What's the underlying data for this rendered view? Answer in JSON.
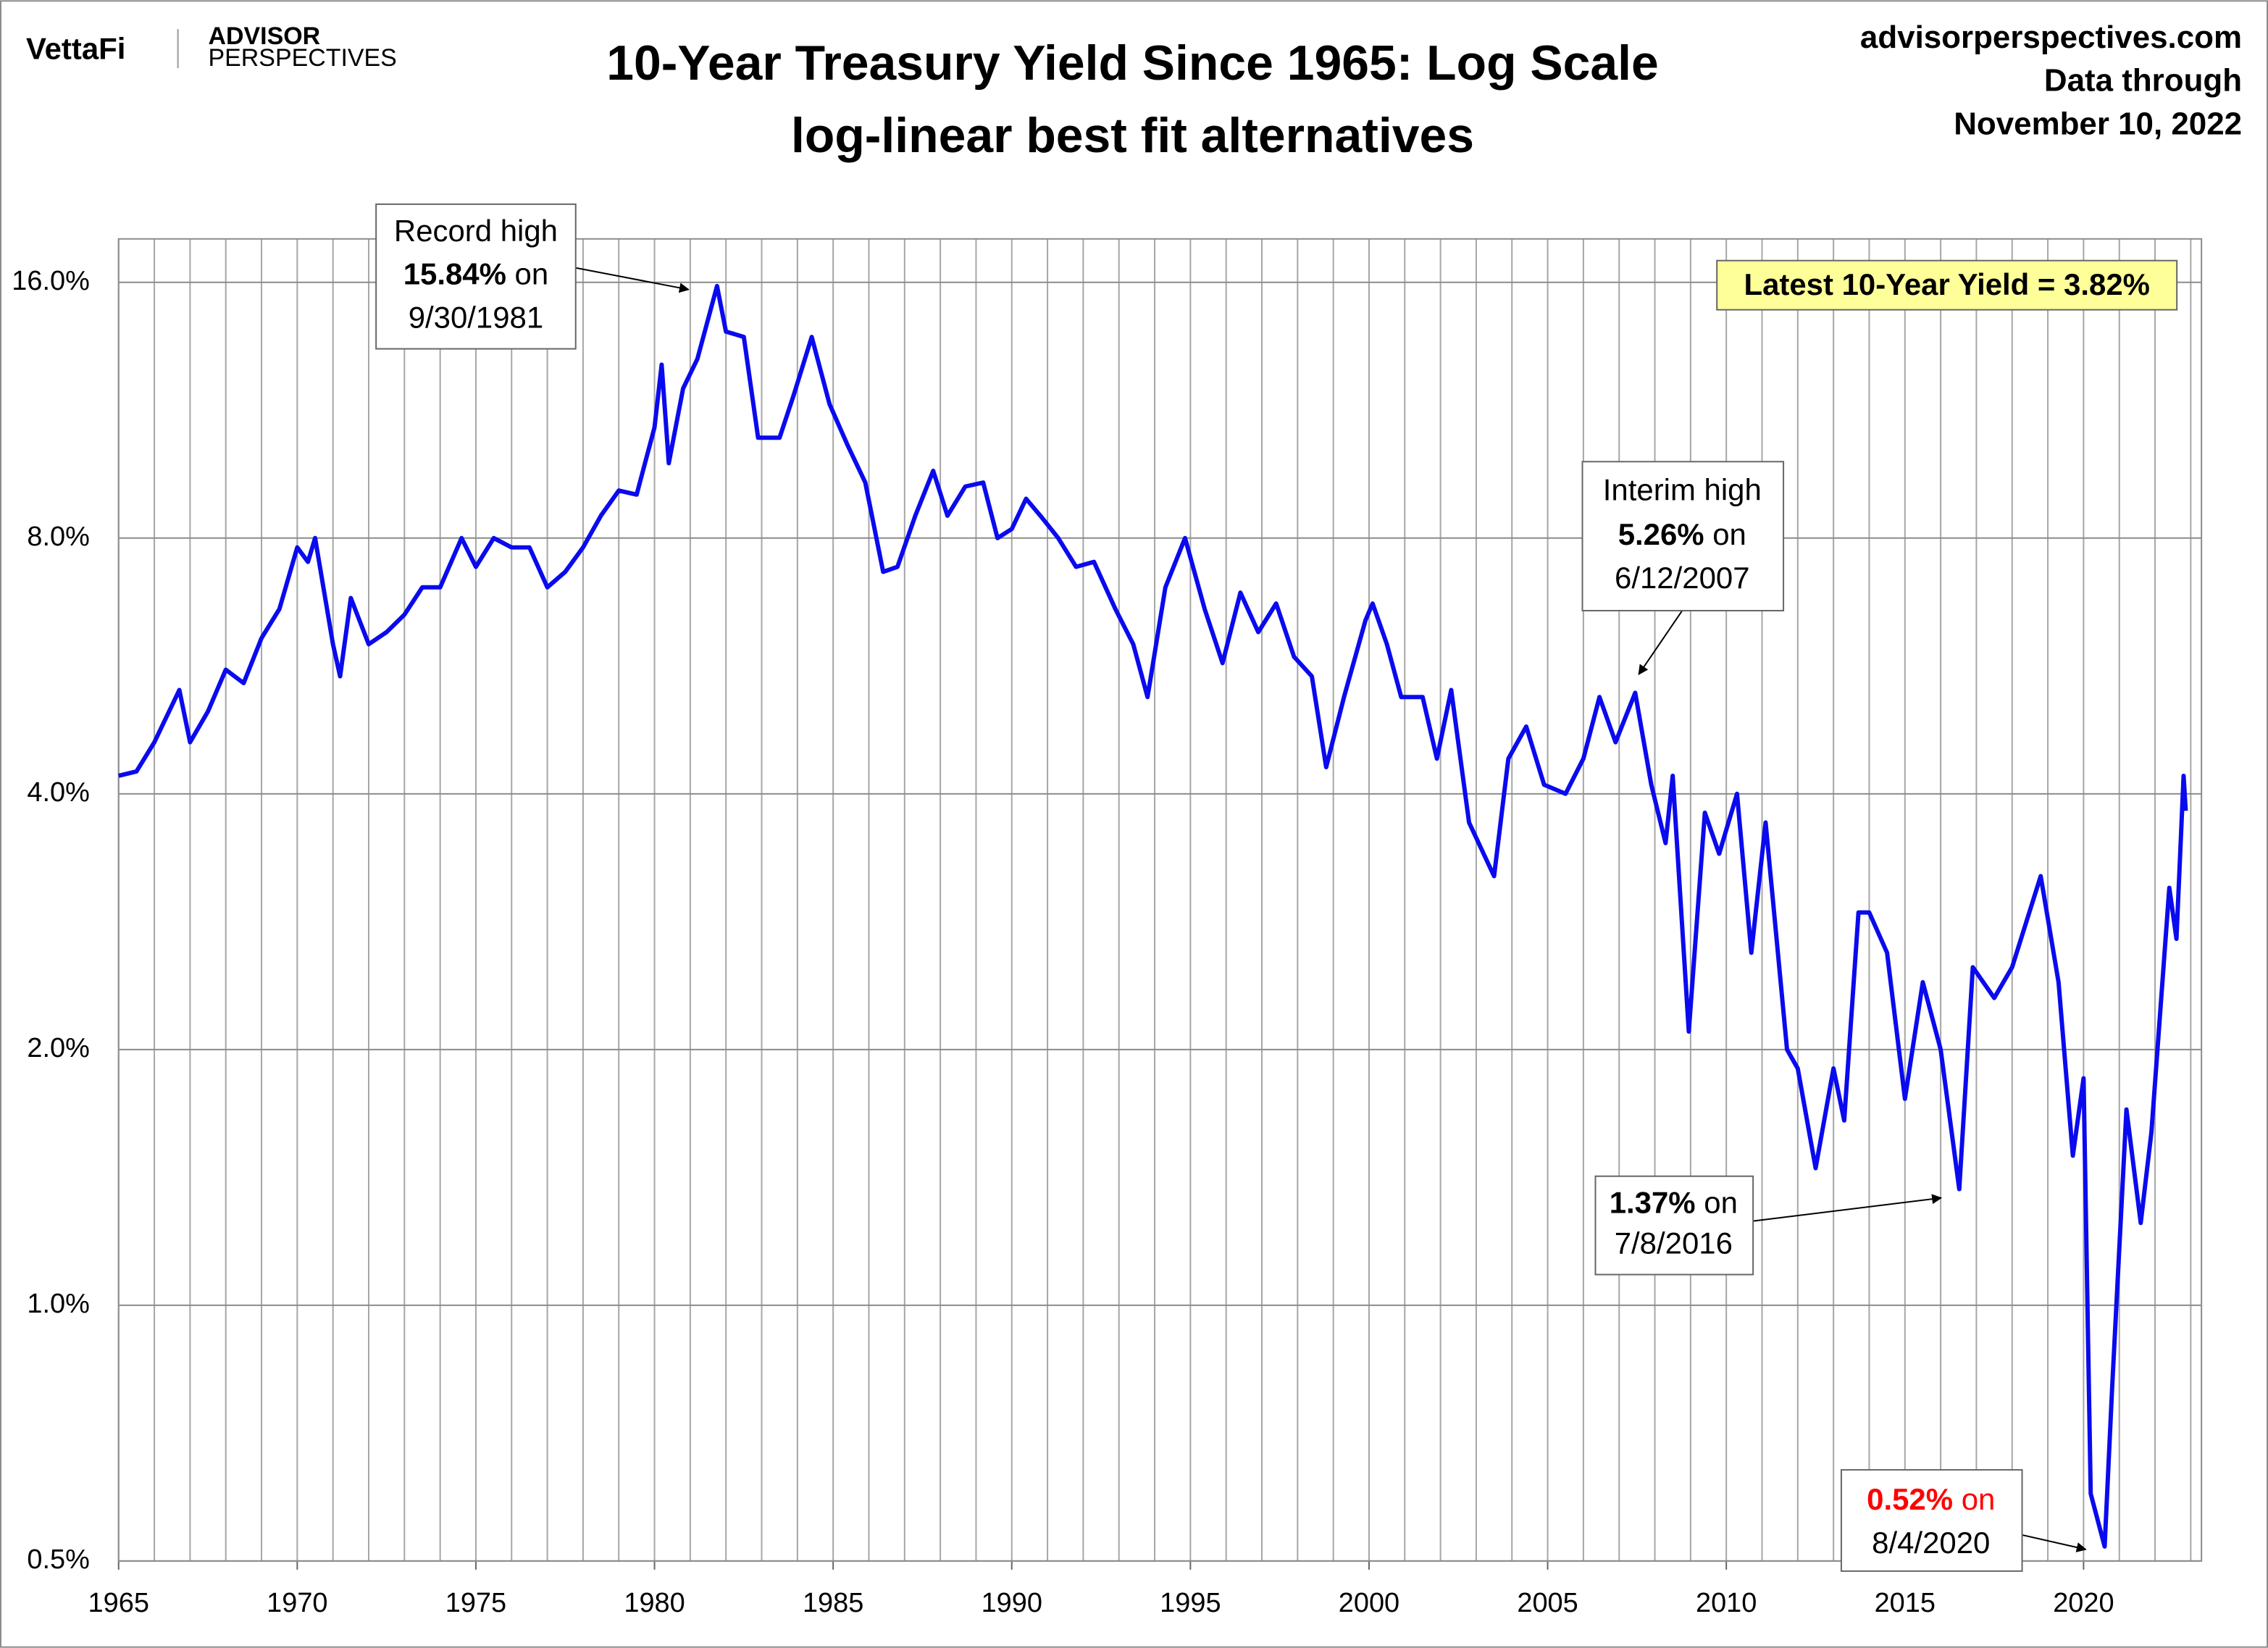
{
  "header": {
    "brand": "VettaFi",
    "brand2_top": "ADVISOR",
    "brand2_bottom": "PERSPECTIVES",
    "site": "advisorperspectives.com",
    "data_through": "Data through",
    "date": "November 10, 2022"
  },
  "chart_data": {
    "type": "line",
    "title": "10-Year Treasury Yield Since 1965: Log Scale",
    "subtitle": "log-linear best fit alternatives",
    "color": "#0a0aee",
    "yscale": "log",
    "grid": true,
    "xlim": [
      1965,
      2023.3
    ],
    "xticks": [
      1965,
      1970,
      1975,
      1980,
      1985,
      1990,
      1995,
      2000,
      2005,
      2010,
      2015,
      2020
    ],
    "xminorticks": [
      1966,
      1967,
      1968,
      1969,
      1971,
      1972,
      1973,
      1974,
      1976,
      1977,
      1978,
      1979,
      1981,
      1982,
      1983,
      1984,
      1986,
      1987,
      1988,
      1989,
      1991,
      1992,
      1993,
      1994,
      1996,
      1997,
      1998,
      1999,
      2001,
      2002,
      2003,
      2004,
      2006,
      2007,
      2008,
      2009,
      2011,
      2012,
      2013,
      2014,
      2016,
      2017,
      2018,
      2019,
      2021,
      2022,
      2023
    ],
    "ylim": [
      0.5,
      18
    ],
    "yticks": [
      {
        "value": 0.5,
        "label": "0.5%"
      },
      {
        "value": 1,
        "label": "1.0%"
      },
      {
        "value": 2,
        "label": "2.0%"
      },
      {
        "value": 4,
        "label": "4.0%"
      },
      {
        "value": 8,
        "label": "8.0%"
      },
      {
        "value": 16,
        "label": "16.0%"
      }
    ],
    "x": [
      1965.0,
      1965.5,
      1966.0,
      1966.7,
      1967.0,
      1967.5,
      1968.0,
      1968.5,
      1969.0,
      1969.5,
      1970.0,
      1970.3,
      1970.5,
      1971.0,
      1971.2,
      1971.5,
      1972.0,
      1972.5,
      1973.0,
      1973.5,
      1974.0,
      1974.6,
      1975.0,
      1975.5,
      1976.0,
      1976.5,
      1977.0,
      1977.5,
      1978.0,
      1978.5,
      1979.0,
      1979.5,
      1980.0,
      1980.2,
      1980.4,
      1980.8,
      1981.2,
      1981.75,
      1982.0,
      1982.5,
      1982.9,
      1983.5,
      1983.9,
      1984.4,
      1984.9,
      1985.4,
      1985.9,
      1986.4,
      1986.8,
      1987.3,
      1987.8,
      1988.2,
      1988.7,
      1989.2,
      1989.6,
      1990.0,
      1990.4,
      1990.8,
      1991.3,
      1991.8,
      1992.3,
      1992.9,
      1993.4,
      1993.8,
      1994.3,
      1994.85,
      1995.4,
      1995.9,
      1996.4,
      1996.9,
      1997.4,
      1997.9,
      1998.4,
      1998.8,
      1999.3,
      1999.9,
      2000.1,
      2000.5,
      2000.9,
      2001.5,
      2001.9,
      2002.3,
      2002.8,
      2003.5,
      2003.9,
      2004.4,
      2004.9,
      2005.5,
      2006.0,
      2006.45,
      2006.9,
      2007.45,
      2007.9,
      2008.3,
      2008.5,
      2008.95,
      2009.4,
      2009.8,
      2010.3,
      2010.7,
      2011.1,
      2011.7,
      2012.0,
      2012.5,
      2013.0,
      2013.3,
      2013.7,
      2014.0,
      2014.5,
      2015.0,
      2015.5,
      2016.0,
      2016.52,
      2016.9,
      2017.5,
      2018.0,
      2018.8,
      2019.3,
      2019.7,
      2020.0,
      2020.2,
      2020.59,
      2020.8,
      2021.2,
      2021.6,
      2021.9,
      2022.4,
      2022.6,
      2022.8,
      2022.86
    ],
    "values": [
      4.2,
      4.25,
      4.6,
      5.3,
      4.6,
      5.0,
      5.6,
      5.4,
      6.1,
      6.6,
      7.8,
      7.5,
      8.0,
      6.0,
      5.5,
      6.8,
      6.0,
      6.2,
      6.5,
      7.0,
      7.0,
      8.0,
      7.4,
      8.0,
      7.8,
      7.8,
      7.0,
      7.3,
      7.8,
      8.5,
      9.1,
      9.0,
      10.8,
      12.8,
      9.8,
      12.0,
      13.0,
      15.84,
      14.0,
      13.8,
      10.5,
      10.5,
      11.8,
      13.8,
      11.5,
      10.3,
      9.3,
      7.3,
      7.4,
      8.5,
      9.6,
      8.5,
      9.2,
      9.3,
      8.0,
      8.2,
      8.9,
      8.5,
      8.0,
      7.4,
      7.5,
      6.6,
      6.0,
      5.2,
      7.0,
      8.0,
      6.6,
      5.7,
      6.9,
      6.2,
      6.7,
      5.8,
      5.5,
      4.3,
      5.2,
      6.4,
      6.7,
      6.0,
      5.2,
      5.2,
      4.4,
      5.3,
      3.7,
      3.2,
      4.4,
      4.8,
      4.1,
      4.0,
      4.4,
      5.2,
      4.6,
      5.26,
      4.1,
      3.5,
      4.2,
      2.1,
      3.8,
      3.4,
      4.0,
      2.6,
      3.7,
      2.0,
      1.9,
      1.45,
      1.9,
      1.65,
      2.9,
      2.9,
      2.6,
      1.75,
      2.4,
      2.0,
      1.37,
      2.5,
      2.3,
      2.5,
      3.2,
      2.4,
      1.5,
      1.85,
      0.6,
      0.52,
      0.8,
      1.7,
      1.25,
      1.6,
      3.1,
      2.7,
      4.2,
      3.82
    ],
    "annotations": {
      "record_high": {
        "line1": "Record high",
        "value": "15.84%",
        "on": "on",
        "date": "9/30/1981"
      },
      "latest": "Latest 10-Year Yield = 3.82%",
      "interim_high": {
        "line1": "Interim high",
        "value": "5.26%",
        "on": "on",
        "date": "6/12/2007"
      },
      "low_2016": {
        "value": "1.37%",
        "on": "on",
        "date": "7/8/2016"
      },
      "low_2020": {
        "value": "0.52%",
        "on": "on",
        "date": "8/4/2020"
      }
    }
  }
}
